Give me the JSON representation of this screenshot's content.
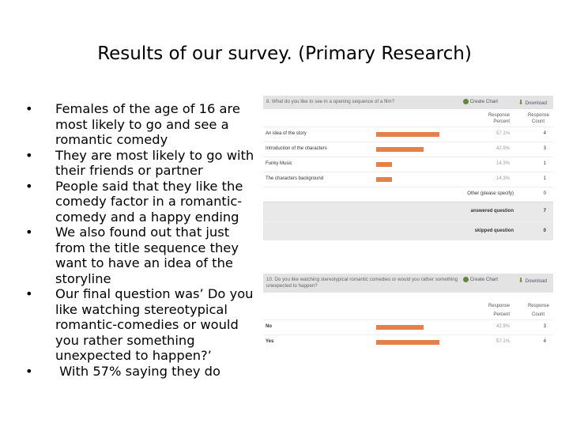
{
  "title": "Results of our survey. (Primary Research)",
  "bullets": [
    "Females of the age of 16 are most likely to go and see a romantic comedy",
    "They are most likely to go with their friends or partner",
    "People said that they like the comedy factor in a romantic-comedy and a happy ending",
    "We also found out that just from the title sequence  they want to have an idea of the storyline",
    "Our final question was’ Do you like watching stereotypical romantic-comedies or would you rather something unexpected to happen?’",
    " With 57% saying they do"
  ],
  "bullet_glyph": "•",
  "panel1": {
    "question": "8. What do you like to see in a opening sequence of a film?",
    "create_chart": "Create Chart",
    "download": "Download",
    "col_response": "Response",
    "col_percent": "Percent",
    "col_response2": "Response",
    "col_count": "Count",
    "rows": [
      {
        "label": "An idea of the story",
        "percent": "57.1%",
        "count": "4",
        "value": 57.1
      },
      {
        "label": "Introduction of the characters",
        "percent": "42.9%",
        "count": "3",
        "value": 42.9
      },
      {
        "label": "Funky Music",
        "percent": "14.3%",
        "count": "1",
        "value": 14.3
      },
      {
        "label": "The characters background",
        "percent": "14.3%",
        "count": "1",
        "value": 14.3
      }
    ],
    "other_label": "Other (please specify)",
    "other_count": "0",
    "answered_label": "answered question",
    "answered_count": "7",
    "skipped_label": "skipped question",
    "skipped_count": "0"
  },
  "panel2": {
    "question": "10. Do you like watching stereotypical romantic comedies or would you rather something unexpected to happen?",
    "create_chart": "Create Chart",
    "download": "Download",
    "col_response": "Response",
    "col_percent": "Percent",
    "col_response2": "Response",
    "col_count": "Count",
    "rows": [
      {
        "label": "No",
        "percent": "42.9%",
        "count": "3",
        "value": 42.9
      },
      {
        "label": "Yes",
        "percent": "57.1%",
        "count": "4",
        "value": 57.1
      }
    ]
  },
  "colors": {
    "bar": "#e4814a",
    "header_bg": "#e3e3e3",
    "accent_green": "#5c8a3a"
  }
}
